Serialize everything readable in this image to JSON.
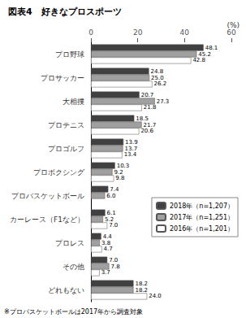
{
  "chart_data": {
    "type": "bar",
    "orientation": "horizontal",
    "title": "図表4　好きなプロスポーツ",
    "xlabel": "(%)",
    "note": "※プロバスケットボールは2017年から調査対象",
    "categories": [
      "プロ野球",
      "プロサッカー",
      "大相撲",
      "プロテニス",
      "プロゴルフ",
      "プロボクシング",
      "プロバスケットボール",
      "カーレース（F1など）",
      "プロレス",
      "その他",
      "どれもない"
    ],
    "series": [
      {
        "name": "2018年（n=1,207）",
        "color": "#404040",
        "values": [
          48.1,
          24.8,
          20.7,
          18.5,
          13.9,
          10.3,
          7.4,
          6.1,
          4.4,
          7.0,
          18.2
        ],
        "value_labels": [
          "48.1",
          "24.8",
          "20.7",
          "18.5",
          "13.9",
          "10.3",
          "7.4",
          "6.1",
          "4.4",
          "7.0",
          "18.2"
        ]
      },
      {
        "name": "2017年（n=1,251）",
        "color": "#a0a0a0",
        "values": [
          45.2,
          25.0,
          27.3,
          21.7,
          13.7,
          9.2,
          6.0,
          5.2,
          3.8,
          7.8,
          18.2
        ],
        "value_labels": [
          "45.2",
          "25.0",
          "27.3",
          "21.7",
          "13.7",
          "9.2",
          "6.0",
          "5.2",
          "3.8",
          "7.8",
          "18.2"
        ]
      },
      {
        "name": "2016年（n=1,201）",
        "color": "#ffffff",
        "values": [
          42.8,
          26.2,
          21.8,
          20.6,
          13.4,
          9.8,
          null,
          7.0,
          4.7,
          3.7,
          24.0
        ],
        "value_labels": [
          "42.8",
          "26.2",
          "21.8",
          "20.6",
          "13.4",
          "9.8",
          null,
          "7.0",
          "4.7",
          "3.7",
          "24.0"
        ]
      }
    ],
    "xlim": [
      0,
      60
    ],
    "xticks": [
      0,
      20,
      40,
      60
    ],
    "data_labels": true,
    "legend": "lower right",
    "grid": false
  }
}
